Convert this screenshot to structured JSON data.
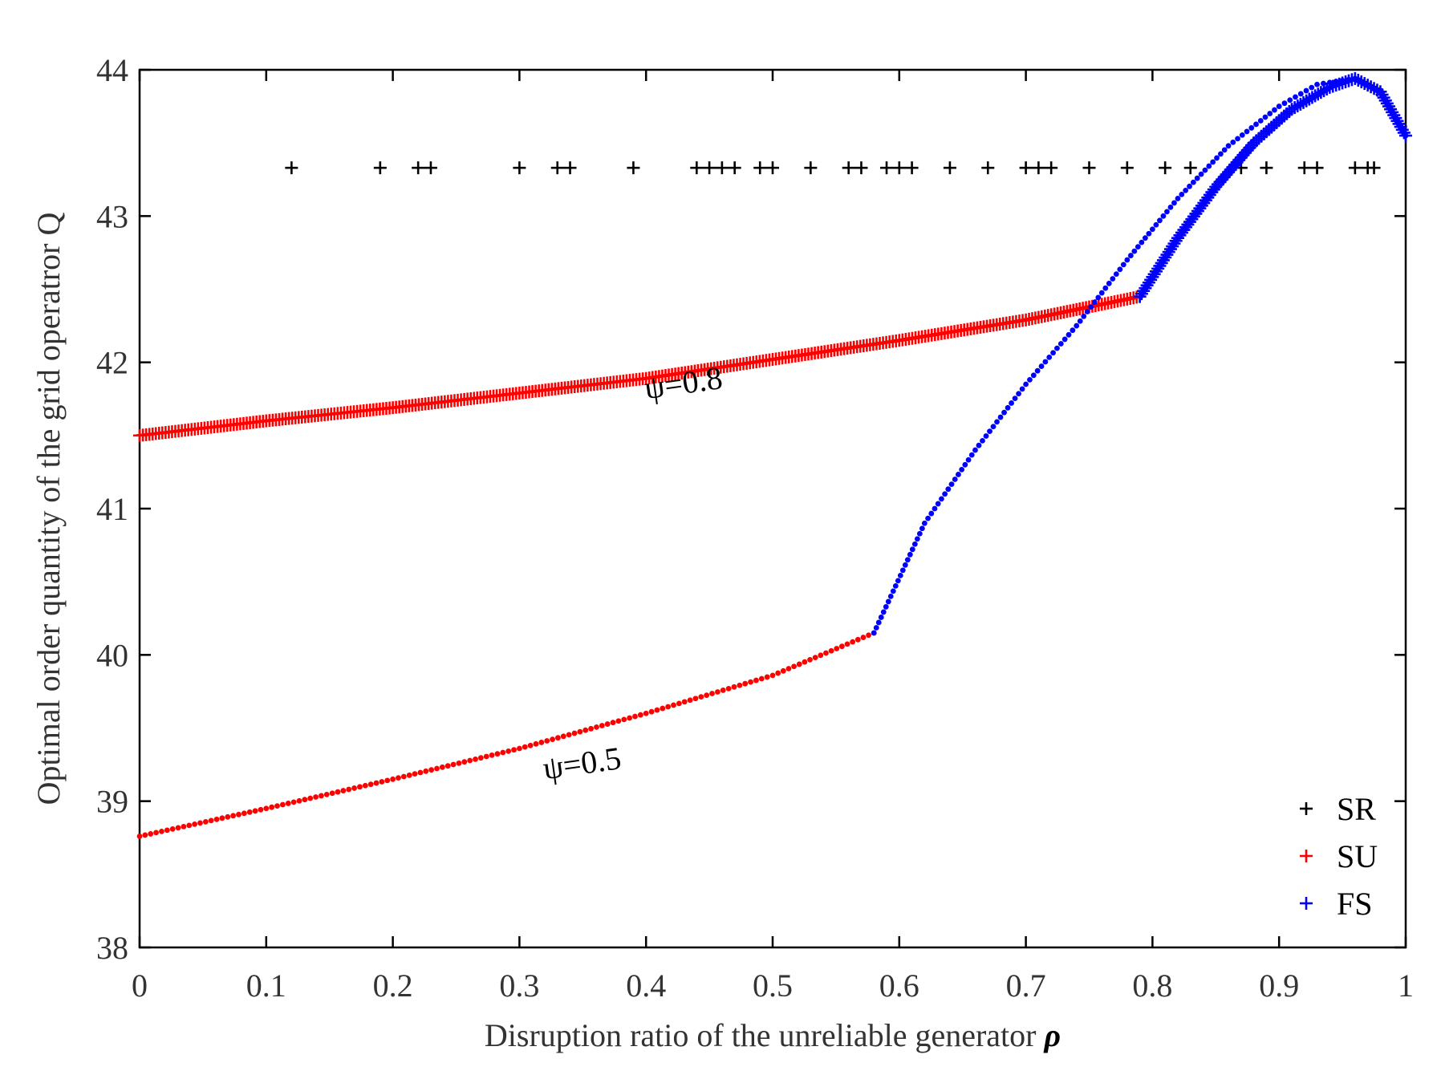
{
  "chart_data": {
    "type": "scatter",
    "title": "",
    "xlabel": "Disruption ratio of the unreliable generator",
    "xlabel_symbol": "ρ",
    "ylabel": "Optimal order quantity of the grid operatror Q",
    "xlim": [
      0,
      1
    ],
    "ylim": [
      38,
      44
    ],
    "xticks": [
      0,
      0.1,
      0.2,
      0.3,
      0.4,
      0.5,
      0.6,
      0.7,
      0.8,
      0.9,
      1
    ],
    "xtick_labels": [
      "0",
      "0.1",
      "0.2",
      "0.3",
      "0.4",
      "0.5",
      "0.6",
      "0.7",
      "0.8",
      "0.9",
      "1"
    ],
    "yticks": [
      38,
      39,
      40,
      41,
      42,
      43,
      44
    ],
    "ytick_labels": [
      "38",
      "39",
      "40",
      "41",
      "42",
      "43",
      "44"
    ],
    "grid": false,
    "legend_position": "bottom-right",
    "legend": [
      {
        "name": "SR",
        "color": "#000000",
        "marker": "+"
      },
      {
        "name": "SU",
        "color": "#ff0000",
        "marker": "+"
      },
      {
        "name": "FS",
        "color": "#0000ff",
        "marker": "+"
      }
    ],
    "series": [
      {
        "name": "SR",
        "color": "#000000",
        "marker": "+",
        "x": [
          0.12,
          0.19,
          0.22,
          0.23,
          0.3,
          0.33,
          0.34,
          0.39,
          0.44,
          0.45,
          0.46,
          0.47,
          0.49,
          0.5,
          0.53,
          0.56,
          0.57,
          0.59,
          0.6,
          0.61,
          0.64,
          0.67,
          0.7,
          0.71,
          0.72,
          0.75,
          0.78,
          0.81,
          0.83,
          0.87,
          0.89,
          0.92,
          0.93,
          0.96,
          0.97,
          0.975
        ],
        "y": [
          43.33,
          43.33,
          43.33,
          43.33,
          43.33,
          43.33,
          43.33,
          43.33,
          43.33,
          43.33,
          43.33,
          43.33,
          43.33,
          43.33,
          43.33,
          43.33,
          43.33,
          43.33,
          43.33,
          43.33,
          43.33,
          43.33,
          43.33,
          43.33,
          43.33,
          43.33,
          43.33,
          43.33,
          43.33,
          43.33,
          43.33,
          43.33,
          43.33,
          43.33,
          43.33,
          43.33
        ]
      },
      {
        "name": "SU",
        "label": "ψ=0.8",
        "color": "#ff0000",
        "marker": "+",
        "x": [
          0,
          0.1,
          0.2,
          0.3,
          0.4,
          0.5,
          0.6,
          0.7,
          0.79
        ],
        "y": [
          41.5,
          41.6,
          41.69,
          41.79,
          41.89,
          42.02,
          42.15,
          42.29,
          42.45
        ]
      },
      {
        "name": "SU",
        "label": "ψ=0.5",
        "color": "#ff0000",
        "marker": ".",
        "x": [
          0,
          0.1,
          0.2,
          0.3,
          0.4,
          0.5,
          0.58
        ],
        "y": [
          38.76,
          38.95,
          39.15,
          39.36,
          39.6,
          39.86,
          40.15
        ]
      },
      {
        "name": "FS",
        "label": "ψ=0.5",
        "color": "#0000ff",
        "marker": ".",
        "x": [
          0.58,
          0.62,
          0.66,
          0.7,
          0.74,
          0.78,
          0.82,
          0.86,
          0.9,
          0.93,
          0.96,
          0.98,
          1.0
        ],
        "y": [
          40.15,
          40.9,
          41.4,
          41.85,
          42.25,
          42.7,
          43.12,
          43.48,
          43.75,
          43.9,
          43.94,
          43.85,
          43.55
        ]
      },
      {
        "name": "FS",
        "label": "ψ=0.8",
        "color": "#0000ff",
        "marker": "+",
        "x": [
          0.79,
          0.82,
          0.85,
          0.88,
          0.91,
          0.94,
          0.96,
          0.98,
          1.0
        ],
        "y": [
          42.45,
          42.85,
          43.2,
          43.5,
          43.73,
          43.88,
          43.94,
          43.85,
          43.55
        ]
      }
    ],
    "annotations": [
      {
        "text": "ψ=0.8",
        "x": 0.4,
        "y": 41.75
      },
      {
        "text": "ψ=0.5",
        "x": 0.32,
        "y": 39.15
      }
    ]
  }
}
